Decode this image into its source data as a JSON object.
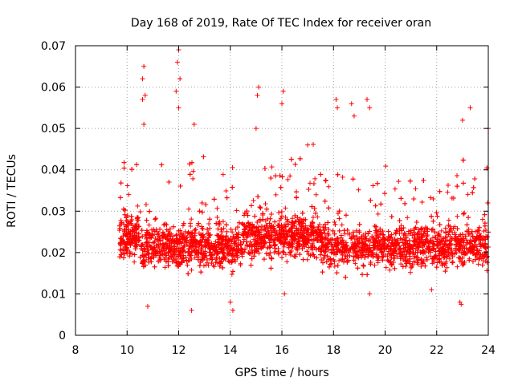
{
  "chart_data": {
    "type": "scatter",
    "title": "Day 168 of 2019, Rate Of TEC Index for receiver oran",
    "xlabel": "GPS time / hours",
    "ylabel": "ROTI / TECUs",
    "xlim": [
      8,
      24
    ],
    "ylim": [
      0,
      0.07
    ],
    "xticks": [
      "8",
      "10",
      "12",
      "14",
      "16",
      "18",
      "20",
      "22",
      "24"
    ],
    "yticks": [
      "0",
      "0.01",
      "0.02",
      "0.03",
      "0.04",
      "0.05",
      "0.06",
      "0.07"
    ],
    "grid": true,
    "marker": "+",
    "color": "#ff0000",
    "series": [
      {
        "name": "ROTI",
        "x_range": [
          9.7,
          24.0
        ],
        "typical_range": [
          0.01,
          0.04
        ],
        "points": [
          [
            10.65,
            0.065
          ],
          [
            10.6,
            0.062
          ],
          [
            10.7,
            0.058
          ],
          [
            10.6,
            0.057
          ],
          [
            12.0,
            0.069
          ],
          [
            11.95,
            0.066
          ],
          [
            12.05,
            0.062
          ],
          [
            11.9,
            0.059
          ],
          [
            12.0,
            0.055
          ],
          [
            15.1,
            0.06
          ],
          [
            15.05,
            0.058
          ],
          [
            16.05,
            0.059
          ],
          [
            16.0,
            0.056
          ],
          [
            18.1,
            0.057
          ],
          [
            18.15,
            0.055
          ],
          [
            18.7,
            0.056
          ],
          [
            18.8,
            0.053
          ],
          [
            19.3,
            0.057
          ],
          [
            19.4,
            0.055
          ],
          [
            23.3,
            0.055
          ],
          [
            23.0,
            0.052
          ],
          [
            24.0,
            0.05
          ],
          [
            12.6,
            0.051
          ],
          [
            10.65,
            0.051
          ],
          [
            15.0,
            0.05
          ],
          [
            14.0,
            0.008
          ],
          [
            14.1,
            0.006
          ],
          [
            12.5,
            0.006
          ],
          [
            10.8,
            0.007
          ],
          [
            22.9,
            0.008
          ],
          [
            22.95,
            0.0075
          ],
          [
            16.1,
            0.01
          ],
          [
            19.4,
            0.01
          ],
          [
            21.8,
            0.011
          ],
          [
            17.0,
            0.046
          ]
        ]
      }
    ]
  }
}
